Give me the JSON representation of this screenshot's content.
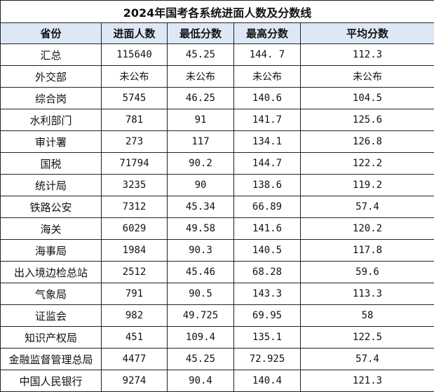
{
  "title": "2024年国考各系统进面人数及分数线",
  "headers": [
    "省份",
    "进面人数",
    "最低分数",
    "最高分数",
    "平均分数"
  ],
  "header_bg": "#dde8f6",
  "rows": [
    [
      "汇总",
      "115640",
      "45.25",
      "144. 7",
      "112.3"
    ],
    [
      "外交部",
      "未公布",
      "未公布",
      "未公布",
      "未公布"
    ],
    [
      "综合岗",
      "5745",
      "46.25",
      "140.6",
      "104.5"
    ],
    [
      "水利部门",
      "781",
      "91",
      "141.7",
      "125.6"
    ],
    [
      "审计署",
      "273",
      "117",
      "134.1",
      "126.8"
    ],
    [
      "国税",
      "71794",
      "90.2",
      "144.7",
      "122.2"
    ],
    [
      "统计局",
      "3235",
      "90",
      "138.6",
      "119.2"
    ],
    [
      "铁路公安",
      "7312",
      "45.34",
      "66.89",
      "57.4"
    ],
    [
      "海关",
      "6029",
      "49.58",
      "141.6",
      "120.2"
    ],
    [
      "海事局",
      "1984",
      "90.3",
      "140.5",
      "117.8"
    ],
    [
      "出入境边检总站",
      "2512",
      "45.46",
      "68.28",
      "59.6"
    ],
    [
      "气象局",
      "791",
      "90.5",
      "143.3",
      "113.3"
    ],
    [
      "证监会",
      "982",
      "49.725",
      "69.95",
      "58"
    ],
    [
      "知识产权局",
      "451",
      "109.4",
      "135.1",
      "122.5"
    ],
    [
      "金融监督管理总局",
      "4477",
      "45.25",
      "72.925",
      "57.4"
    ],
    [
      "中国人民银行",
      "9274",
      "90.4",
      "140.4",
      "121.3"
    ]
  ]
}
